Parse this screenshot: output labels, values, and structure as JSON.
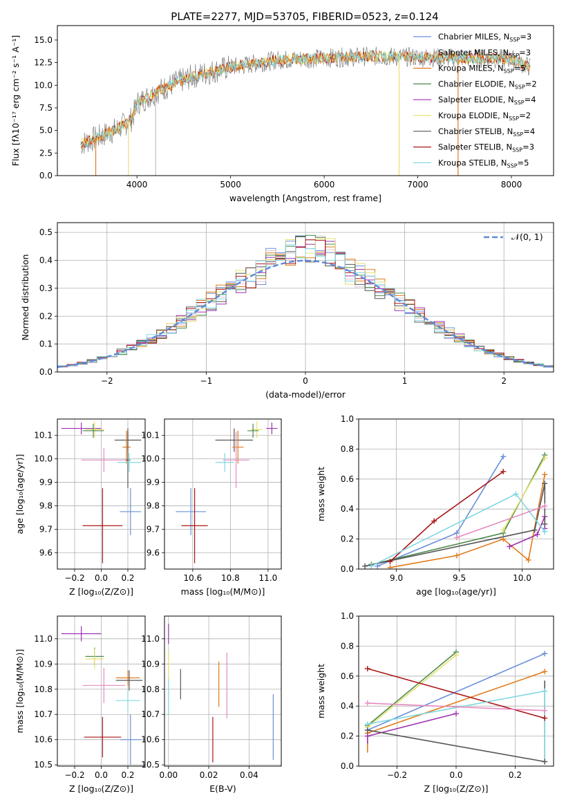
{
  "figure": {
    "title": "PLATE=2277, MJD=53705, FIBERID=0523, z=0.124"
  },
  "colors": {
    "Chabrier MILES": "#6a8fd9",
    "Salpeter MILES": "#e2c4d8",
    "Kroupa MILES": "#e07b1a",
    "Chabrier ELODIE": "#4b8a4b",
    "Salpeter ELODIE": "#9b30b0",
    "Kroupa ELODIE": "#e6e070",
    "Chabrier STELIB": "#555555",
    "Salpeter STELIB": "#aa1515",
    "Kroupa STELIB": "#80d8e0",
    "pink": "#e58ac0",
    "spectrum_gray": "#808080",
    "normal_curve": "#5b8ad9"
  },
  "chart_data": [
    {
      "id": "spectrum",
      "type": "line",
      "xlabel": "wavelength [Angstrom, rest frame]",
      "ylabel": "Flux [fλ10⁻¹⁷ erg cm⁻² s⁻¹ A⁻¹]",
      "xlim": [
        3150,
        8450
      ],
      "ylim": [
        0,
        16.6
      ],
      "xticks": [
        "4000",
        "5000",
        "6000",
        "7000",
        "8000"
      ],
      "yticks": [
        "0.0",
        "2.5",
        "5.0",
        "7.5",
        "10.0",
        "12.5",
        "15.0"
      ],
      "legend_position": "right",
      "legend": [
        "Chabrier MILES, N_SSP=3",
        "Salpeter MILES, N_SSP=3",
        "Kroupa MILES, N_SSP=5",
        "Chabrier ELODIE, N_SSP=2",
        "Salpeter ELODIE, N_SSP=4",
        "Kroupa ELODIE, N_SSP=2",
        "Chabrier STELIB, N_SSP=4",
        "Salpeter STELIB, N_SSP=3",
        "Kroupa STELIB, N_SSP=5"
      ],
      "legend_colors": [
        "Chabrier MILES",
        "Salpeter MILES",
        "Kroupa MILES",
        "Chabrier ELODIE",
        "Salpeter ELODIE",
        "Kroupa ELODIE",
        "Chabrier STELIB",
        "Salpeter STELIB",
        "Kroupa STELIB"
      ],
      "continuum": {
        "x": [
          3400,
          3600,
          3800,
          3950,
          4000,
          4200,
          4400,
          4600,
          4800,
          5000,
          5200,
          5500,
          6000,
          6500,
          7000,
          7500,
          8000,
          8200
        ],
        "y": [
          3.5,
          4.3,
          5.2,
          6.3,
          8.0,
          9.2,
          10.2,
          11.0,
          11.5,
          12.0,
          12.3,
          12.8,
          13.0,
          13.2,
          13.1,
          13.0,
          12.9,
          12.0
        ]
      },
      "drops": [
        3560,
        3910,
        4200,
        6800,
        7430
      ]
    },
    {
      "id": "residuals",
      "type": "line",
      "xlabel": "(data-model)/error",
      "ylabel": "Normed distribution",
      "xlim": [
        -2.5,
        2.5
      ],
      "ylim": [
        0,
        0.535
      ],
      "xticks": [
        "-2",
        "-1",
        "0",
        "1",
        "2"
      ],
      "yticks": [
        "0.0",
        "0.1",
        "0.2",
        "0.3",
        "0.4",
        "0.5"
      ],
      "legend": [
        "𝒩(0, 1)"
      ],
      "legend_position": "top-right",
      "grid": true,
      "hist_series": [
        "Chabrier MILES",
        "Salpeter MILES",
        "Kroupa MILES",
        "Chabrier ELODIE",
        "Salpeter ELODIE",
        "Kroupa ELODIE",
        "Chabrier STELIB",
        "Salpeter STELIB",
        "Kroupa STELIB"
      ]
    },
    {
      "id": "age-Z",
      "type": "scatter",
      "xlabel": "Z [log₁₀(Z/Z⊙)]",
      "ylabel": "age  [log₁₀(age/yr)]",
      "xlim": [
        -0.33,
        0.33
      ],
      "ylim": [
        9.53,
        10.17
      ],
      "xticks": [
        "-0.2",
        "0.0",
        "0.2"
      ],
      "yticks": [
        "9.6",
        "9.7",
        "9.8",
        "9.9",
        "10.0",
        "10.1"
      ],
      "grid": true,
      "points": [
        {
          "x": -0.15,
          "y": 10.13,
          "xerr": 0.15,
          "yerr": 0.025,
          "c": "Salpeter ELODIE"
        },
        {
          "x": -0.05,
          "y": 10.125,
          "xerr": 0.07,
          "yerr": 0.035,
          "c": "Kroupa ELODIE"
        },
        {
          "x": -0.06,
          "y": 10.12,
          "xerr": 0.08,
          "yerr": 0.03,
          "c": "Chabrier ELODIE"
        },
        {
          "x": 0.2,
          "y": 10.08,
          "xerr": 0.1,
          "yerr": 0.05,
          "c": "Chabrier STELIB"
        },
        {
          "x": 0.19,
          "y": 10.05,
          "xerr": 0.03,
          "yerr": 0.07,
          "c": "Kroupa MILES"
        },
        {
          "x": 0.2,
          "y": 9.995,
          "xerr": 0.02,
          "yerr": 0.12,
          "c": "Chabrier STELIB"
        },
        {
          "x": 0.02,
          "y": 9.995,
          "xerr": 0.17,
          "yerr": 0.05,
          "c": "pink"
        },
        {
          "x": 0.21,
          "y": 9.985,
          "xerr": 0.09,
          "yerr": 0.04,
          "c": "Kroupa STELIB"
        },
        {
          "x": 0.22,
          "y": 9.775,
          "xerr": 0.08,
          "yerr": 0.1,
          "c": "Chabrier MILES"
        },
        {
          "x": 0.01,
          "y": 9.715,
          "xerr": 0.15,
          "yerr": 0.16,
          "c": "Salpeter STELIB"
        }
      ]
    },
    {
      "id": "age-mass",
      "type": "scatter",
      "xlabel": "mass [log₁₀(M/M⊙)]",
      "ylabel": "",
      "xlim": [
        10.45,
        11.07
      ],
      "ylim": [
        9.53,
        10.17
      ],
      "xticks": [
        "10.6",
        "10.8",
        "11.0"
      ],
      "yticks": [
        "9.6",
        "9.7",
        "9.8",
        "9.9",
        "10.0",
        "10.1"
      ],
      "grid": true,
      "points": [
        {
          "x": 11.02,
          "y": 10.13,
          "xerr": 0.03,
          "yerr": 0.025,
          "c": "Salpeter ELODIE"
        },
        {
          "x": 10.94,
          "y": 10.125,
          "xerr": 0.03,
          "yerr": 0.035,
          "c": "Kroupa ELODIE"
        },
        {
          "x": 10.92,
          "y": 10.12,
          "xerr": 0.03,
          "yerr": 0.03,
          "c": "Chabrier ELODIE"
        },
        {
          "x": 10.82,
          "y": 10.08,
          "xerr": 0.1,
          "yerr": 0.05,
          "c": "Chabrier STELIB"
        },
        {
          "x": 10.84,
          "y": 10.05,
          "xerr": 0.03,
          "yerr": 0.07,
          "c": "Kroupa MILES"
        },
        {
          "x": 10.83,
          "y": 9.995,
          "xerr": 0.07,
          "yerr": 0.12,
          "c": "pink"
        },
        {
          "x": 10.77,
          "y": 9.985,
          "xerr": 0.05,
          "yerr": 0.04,
          "c": "Kroupa STELIB"
        },
        {
          "x": 10.59,
          "y": 9.775,
          "xerr": 0.08,
          "yerr": 0.1,
          "c": "Chabrier MILES"
        },
        {
          "x": 10.61,
          "y": 9.715,
          "xerr": 0.07,
          "yerr": 0.16,
          "c": "Salpeter STELIB"
        }
      ]
    },
    {
      "id": "weight-age",
      "type": "line",
      "xlabel": "age  [log₁₀(age/yr)]",
      "ylabel": "mass weight",
      "xlim": [
        8.7,
        10.25
      ],
      "ylim": [
        0,
        1.0
      ],
      "xticks": [
        "9.0",
        "9.5",
        "10.0"
      ],
      "yticks": [
        "0.0",
        "0.2",
        "0.4",
        "0.6",
        "0.8",
        "1.0"
      ],
      "grid": true,
      "series": [
        {
          "c": "Chabrier MILES",
          "x": [
            8.85,
            9.48,
            9.85
          ],
          "y": [
            0.02,
            0.24,
            0.75
          ]
        },
        {
          "c": "Kroupa MILES",
          "x": [
            8.95,
            9.48,
            9.85,
            10.05,
            10.18
          ],
          "y": [
            0.01,
            0.09,
            0.2,
            0.06,
            0.63
          ]
        },
        {
          "c": "Chabrier ELODIE",
          "x": [
            8.8,
            9.85,
            10.18
          ],
          "y": [
            0.03,
            0.24,
            0.76
          ]
        },
        {
          "c": "Salpeter ELODIE",
          "x": [
            9.9,
            10.12,
            10.18,
            10.18
          ],
          "y": [
            0.15,
            0.23,
            0.35,
            0.27
          ]
        },
        {
          "c": "Kroupa ELODIE",
          "x": [
            9.85,
            10.18
          ],
          "y": [
            0.26,
            0.74
          ]
        },
        {
          "c": "Chabrier STELIB",
          "x": [
            8.75,
            10.1,
            10.18,
            10.18
          ],
          "y": [
            0.02,
            0.26,
            0.57,
            0.3
          ]
        },
        {
          "c": "Salpeter STELIB",
          "x": [
            8.95,
            9.3,
            9.85
          ],
          "y": [
            0.05,
            0.32,
            0.65
          ]
        },
        {
          "c": "Kroupa STELIB",
          "x": [
            8.8,
            9.95,
            10.18,
            10.18
          ],
          "y": [
            0.02,
            0.5,
            0.25,
            0.25
          ]
        },
        {
          "c": "pink",
          "x": [
            9.48,
            10.18
          ],
          "y": [
            0.21,
            0.42
          ]
        }
      ]
    },
    {
      "id": "mass-Z",
      "type": "scatter",
      "xlabel": "Z [log₁₀(Z/Z⊙)]",
      "ylabel": "mass [log₁₀(M/M⊙)]",
      "xlim": [
        -0.33,
        0.33
      ],
      "ylim": [
        10.495,
        11.09
      ],
      "xticks": [
        "-0.2",
        "0.0",
        "0.2"
      ],
      "yticks": [
        "10.5",
        "10.6",
        "10.7",
        "10.8",
        "10.9",
        "11.0"
      ],
      "grid": true,
      "points": [
        {
          "x": -0.15,
          "y": 11.02,
          "xerr": 0.15,
          "yerr": 0.03,
          "c": "Salpeter ELODIE"
        },
        {
          "x": -0.05,
          "y": 10.93,
          "xerr": 0.07,
          "yerr": 0.035,
          "c": "Chabrier ELODIE"
        },
        {
          "x": -0.05,
          "y": 10.92,
          "xerr": 0.07,
          "yerr": 0.04,
          "c": "Kroupa ELODIE"
        },
        {
          "x": 0.2,
          "y": 10.845,
          "xerr": 0.09,
          "yerr": 0.03,
          "c": "Kroupa MILES"
        },
        {
          "x": 0.21,
          "y": 10.835,
          "xerr": 0.1,
          "yerr": 0.04,
          "c": "Chabrier STELIB"
        },
        {
          "x": 0.02,
          "y": 10.815,
          "xerr": 0.16,
          "yerr": 0.07,
          "c": "pink"
        },
        {
          "x": 0.2,
          "y": 10.755,
          "xerr": 0.09,
          "yerr": 0.04,
          "c": "Kroupa STELIB"
        },
        {
          "x": 0.22,
          "y": 10.6,
          "xerr": 0.08,
          "yerr": 0.1,
          "c": "Chabrier MILES"
        },
        {
          "x": 0.01,
          "y": 10.61,
          "xerr": 0.14,
          "yerr": 0.08,
          "c": "Salpeter STELIB"
        }
      ]
    },
    {
      "id": "mass-ebv",
      "type": "scatter",
      "xlabel": "E(B-V)",
      "ylabel": "",
      "xlim": [
        -0.002,
        0.056
      ],
      "ylim": [
        10.495,
        11.09
      ],
      "xticks": [
        "0.00",
        "0.02",
        "0.04"
      ],
      "yticks": [
        "10.5",
        "10.6",
        "10.7",
        "10.8",
        "10.9",
        "11.0"
      ],
      "grid": true,
      "points": [
        {
          "x": 0.0,
          "y": 11.02,
          "xerr": 0,
          "yerr": 0.04,
          "c": "Salpeter ELODIE"
        },
        {
          "x": 0.0,
          "y": 10.89,
          "xerr": 0,
          "yerr": 0.06,
          "c": "Kroupa ELODIE"
        },
        {
          "x": 0.0,
          "y": 10.77,
          "xerr": 0,
          "yerr": 0.07,
          "c": "Kroupa STELIB"
        },
        {
          "x": 0.006,
          "y": 10.82,
          "xerr": 0,
          "yerr": 0.06,
          "c": "Chabrier STELIB"
        },
        {
          "x": 0.022,
          "y": 10.6,
          "xerr": 0,
          "yerr": 0.09,
          "c": "Salpeter STELIB"
        },
        {
          "x": 0.025,
          "y": 10.82,
          "xerr": 0,
          "yerr": 0.09,
          "c": "Kroupa MILES"
        },
        {
          "x": 0.029,
          "y": 10.815,
          "xerr": 0,
          "yerr": 0.13,
          "c": "pink"
        },
        {
          "x": 0.052,
          "y": 10.65,
          "xerr": 0,
          "yerr": 0.13,
          "c": "Chabrier MILES"
        }
      ]
    },
    {
      "id": "weight-Z",
      "type": "line",
      "xlabel": "Z [log₁₀(Z/Z⊙)]",
      "ylabel": "mass weight",
      "xlim": [
        -0.33,
        0.33
      ],
      "ylim": [
        0,
        1.0
      ],
      "xticks": [
        "-0.2",
        "0.0",
        "0.2"
      ],
      "yticks": [
        "0.0",
        "0.2",
        "0.4",
        "0.6",
        "0.8",
        "1.0"
      ],
      "grid": true,
      "series": [
        {
          "c": "Chabrier MILES",
          "x": [
            -0.3,
            0.3
          ],
          "y": [
            0.24,
            0.75
          ]
        },
        {
          "c": "Kroupa MILES",
          "x": [
            -0.3,
            0.3
          ],
          "y": [
            0.22,
            0.63
          ]
        },
        {
          "c": "Chabrier ELODIE",
          "x": [
            -0.3,
            0.0
          ],
          "y": [
            0.27,
            0.76
          ]
        },
        {
          "c": "Kroupa ELODIE",
          "x": [
            -0.3,
            0.0
          ],
          "y": [
            0.26,
            0.74
          ]
        },
        {
          "c": "Salpeter ELODIE",
          "x": [
            -0.3,
            0.0
          ],
          "y": [
            0.2,
            0.35
          ]
        },
        {
          "c": "Chabrier STELIB",
          "x": [
            -0.3,
            0.3
          ],
          "y": [
            0.24,
            0.03
          ]
        },
        {
          "c": "Salpeter STELIB",
          "x": [
            -0.3,
            0.3
          ],
          "y": [
            0.65,
            0.32
          ]
        },
        {
          "c": "Kroupa STELIB",
          "x": [
            -0.3,
            0.3
          ],
          "y": [
            0.28,
            0.5
          ]
        },
        {
          "c": "pink",
          "x": [
            -0.3,
            0.3
          ],
          "y": [
            0.42,
            0.37
          ]
        }
      ],
      "vertical_markers": [
        {
          "c": "Kroupa MILES",
          "x": -0.3,
          "y": [
            0.09,
            0.22
          ]
        },
        {
          "c": "Salpeter ELODIE",
          "x": -0.3,
          "y": [
            0.15,
            0.2
          ]
        },
        {
          "c": "Chabrier STELIB",
          "x": 0.3,
          "y": [
            0.03,
            0.57
          ]
        },
        {
          "c": "Kroupa STELIB",
          "x": 0.3,
          "y": [
            0.01,
            0.5
          ]
        }
      ]
    }
  ]
}
